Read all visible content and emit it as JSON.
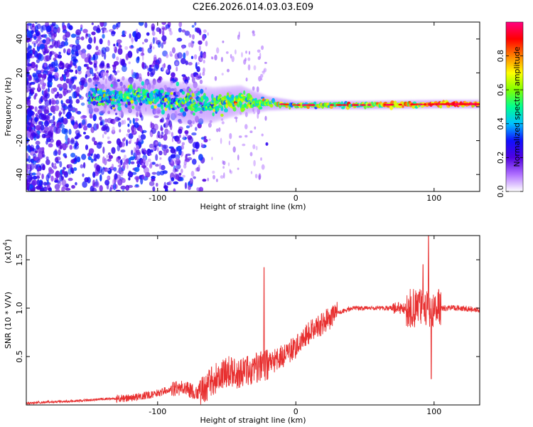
{
  "title": "C2E6.2026.014.03.03.E09",
  "chart_data": [
    {
      "type": "heatmap",
      "xlabel": "Height of straight line (km)",
      "ylabel": "Frequency (Hz)",
      "xlim": [
        -195,
        133
      ],
      "ylim": [
        -50,
        50
      ],
      "xticks": [
        -100,
        0,
        100
      ],
      "xtick_labels": [
        "-100",
        "0",
        "100"
      ],
      "yticks": [
        -40,
        -20,
        0,
        20,
        40
      ],
      "ytick_labels": [
        "-40",
        "-20",
        "0",
        "20",
        "40"
      ],
      "colorbar": {
        "label": "Normalized spectral amplitude",
        "range": [
          0,
          1
        ],
        "ticks": [
          0.0,
          0.2,
          0.4,
          0.6,
          0.8
        ],
        "tick_labels": [
          "0.0",
          "0.2",
          "0.4",
          "0.6",
          "0.8"
        ],
        "stops": [
          "#ffffff",
          "#b070ff",
          "#5000e0",
          "#1010ff",
          "#00c0ff",
          "#00ff90",
          "#80ff00",
          "#ffff00",
          "#ff8000",
          "#ff0000",
          "#ff0080"
        ]
      },
      "ridge": {
        "description_points_km": [
          -150,
          -120,
          -100,
          -80,
          -60,
          -40,
          -20,
          0,
          50,
          100,
          133
        ],
        "center_hz": [
          6,
          6,
          5,
          2,
          1,
          4,
          2,
          1,
          1,
          1.5,
          1.5
        ],
        "halfwidth_hz": [
          6,
          6,
          6,
          7,
          6,
          5,
          2.5,
          1.5,
          1.5,
          1.5,
          1.5
        ],
        "amplitude": [
          0.4,
          0.45,
          0.45,
          0.45,
          0.5,
          0.55,
          0.55,
          0.55,
          0.6,
          0.75,
          0.8
        ]
      }
    },
    {
      "type": "line",
      "xlabel": "Height of straight line (km)",
      "ylabel": "SNR (10 * V/V)",
      "y_multiplier_label": "(x10",
      "y_multiplier_exp": "4",
      "xlim": [
        -195,
        133
      ],
      "ylim": [
        0,
        1.75
      ],
      "xticks": [
        -100,
        0,
        100
      ],
      "xtick_labels": [
        "-100",
        "0",
        "100"
      ],
      "yticks": [
        0.5,
        1.0,
        1.5
      ],
      "ytick_labels": [
        "0.5",
        "1.0",
        "1.5"
      ],
      "color": "#e83030",
      "series": [
        {
          "name": "SNR",
          "x": [
            -195,
            -180,
            -160,
            -140,
            -120,
            -100,
            -90,
            -80,
            -70,
            -60,
            -50,
            -40,
            -30,
            -20,
            -10,
            0,
            10,
            20,
            30,
            40,
            50,
            60,
            70,
            80,
            90,
            100,
            110,
            120,
            133
          ],
          "y": [
            0.02,
            0.03,
            0.04,
            0.06,
            0.07,
            0.12,
            0.17,
            0.17,
            0.12,
            0.25,
            0.35,
            0.32,
            0.38,
            0.42,
            0.5,
            0.6,
            0.75,
            0.85,
            0.95,
            1.0,
            1.0,
            1.0,
            1.0,
            1.0,
            1.0,
            1.0,
            1.0,
            1.0,
            0.98
          ]
        }
      ],
      "spikes": [
        {
          "x": -23,
          "y": 1.42
        },
        {
          "x": 96,
          "y": 1.75
        },
        {
          "x": 92,
          "y": 1.45
        },
        {
          "x": 98,
          "y": 0.27
        }
      ]
    }
  ]
}
